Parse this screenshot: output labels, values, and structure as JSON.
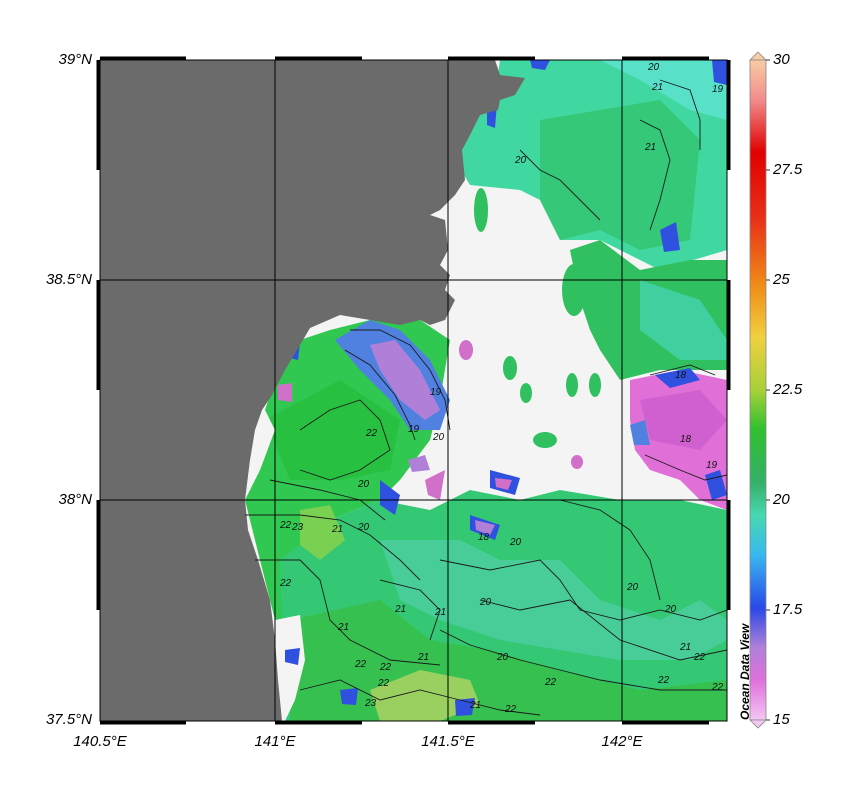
{
  "map": {
    "lat_labels": [
      "39°N",
      "38.5°N",
      "38°N",
      "37.5°N"
    ],
    "lon_labels": [
      "140.5°E",
      "141°E",
      "141.5°E",
      "142°E"
    ],
    "extent": {
      "lon": [
        140.5,
        142.3
      ],
      "lat": [
        37.5,
        39.0
      ]
    },
    "land_color": "#6b6b6b",
    "nodata_color": "#f4f4f4",
    "contour_labels": [
      "18",
      "19",
      "20",
      "21",
      "22",
      "23"
    ]
  },
  "colorbar": {
    "ticks": [
      "30",
      "27.5",
      "25",
      "22.5",
      "20",
      "17.5",
      "15"
    ],
    "range": [
      15,
      30
    ],
    "stops": [
      "#f2b8f2",
      "#e060d8",
      "#b070d0",
      "#3050e0",
      "#30b0f0",
      "#40d8b8",
      "#30c060",
      "#30c030",
      "#a0d040",
      "#f0d040",
      "#f08020",
      "#e03020",
      "#e00000",
      "#f09090",
      "#f8c8a0"
    ]
  },
  "watermark": "Ocean Data View"
}
